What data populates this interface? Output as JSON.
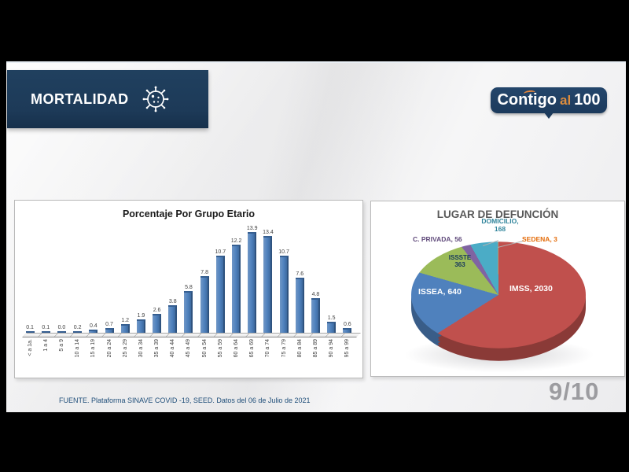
{
  "header": {
    "title": "MORTALIDAD"
  },
  "brand": {
    "word1": "Contigo",
    "word2": "al",
    "word3": "100"
  },
  "chart_data": [
    {
      "type": "bar",
      "title": "Porcentaje Por Grupo Etario",
      "categories": [
        "< a 1a.",
        "1 a 4",
        "5 a 9",
        "10 a 14",
        "15 a 19",
        "20 a 24",
        "25 a 29",
        "30 a 34",
        "35 a 39",
        "40 a 44",
        "45 a 49",
        "50 a 54",
        "55 a 59",
        "60 a 64",
        "65 a 69",
        "70 a 74",
        "75 a 79",
        "80 a 84",
        "85 a 89",
        "90 a 94",
        "95 a 99"
      ],
      "values": [
        0.1,
        0.1,
        0.0,
        0.2,
        0.4,
        0.7,
        1.2,
        1.9,
        2.6,
        3.8,
        5.8,
        7.8,
        10.7,
        12.2,
        13.9,
        13.4,
        10.7,
        7.6,
        4.8,
        1.5,
        0.6
      ],
      "bar_color": "#4F81BD",
      "ylabel": "",
      "xlabel": "",
      "ylim": [
        0,
        14
      ],
      "grid": false,
      "legend": false
    },
    {
      "type": "pie",
      "title": "LUGAR DE DEFUNCIÓN",
      "slices": [
        {
          "label": "IMSS",
          "value": 2030,
          "display": "IMSS, 2030",
          "color": "#C0504D",
          "label_color": "#FFFFFF"
        },
        {
          "label": "ISSEA",
          "value": 640,
          "display": "ISSEA, 640",
          "color": "#4F81BD",
          "label_color": "#FFFFFF"
        },
        {
          "label": "ISSSTE",
          "value": 363,
          "display": "ISSSTE\n363",
          "color": "#9BBB59",
          "label_color": "#17375E"
        },
        {
          "label": "C. PRIVADA",
          "value": 56,
          "display": "C. PRIVADA, 56",
          "color": "#8064A2",
          "label_color": "#604A7B"
        },
        {
          "label": "DOMICILIO",
          "value": 168,
          "display": "DOMICILIO,\n168",
          "color": "#4BACC6",
          "label_color": "#31859C"
        },
        {
          "label": "SEDENA",
          "value": 3,
          "display": "SEDENA, 3",
          "color": "#F79646",
          "label_color": "#E46C0A"
        }
      ],
      "legend": false
    }
  ],
  "footer": {
    "source": "FUENTE. Plataforma SINAVE COVID -19, SEED. Datos del 06 de Julio de 2021",
    "page": "9/10"
  }
}
